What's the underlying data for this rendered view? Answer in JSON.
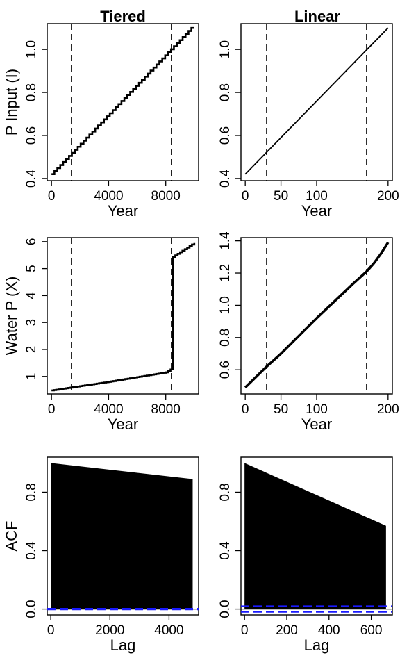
{
  "column_titles": [
    "Tiered",
    "Linear"
  ],
  "chart_data": [
    {
      "id": "p-input-tiered",
      "type": "line",
      "line_style": "step",
      "column": "Tiered",
      "xlabel": "Year",
      "ylabel": "P Input (I)",
      "xlim": [
        -300,
        10300
      ],
      "ylim": [
        0.39,
        1.12
      ],
      "xticks": [
        0,
        4000,
        8000
      ],
      "yticks": [
        0.4,
        0.6,
        0.8,
        1.0
      ],
      "ytick_labels": [
        "0.4",
        "0.6",
        "0.8",
        "1.0"
      ],
      "series": [
        {
          "x": [
            0,
            10000
          ],
          "y": [
            0.42,
            1.1
          ],
          "steps": 49
        }
      ],
      "vlines": [
        1400,
        8400
      ]
    },
    {
      "id": "p-input-linear",
      "type": "line",
      "column": "Linear",
      "xlabel": "Year",
      "ylabel": "",
      "xlim": [
        -6,
        206
      ],
      "ylim": [
        0.39,
        1.12
      ],
      "xticks": [
        0,
        50,
        100,
        200
      ],
      "yticks": [
        0.4,
        0.6,
        0.8,
        1.0
      ],
      "ytick_labels": [
        "0.4",
        "0.6",
        "0.8",
        "1.0"
      ],
      "series": [
        {
          "x": [
            0,
            200
          ],
          "y": [
            0.42,
            1.1
          ]
        }
      ],
      "vlines": [
        30,
        170
      ]
    },
    {
      "id": "water-p-tiered",
      "type": "line",
      "line_style": "step",
      "column": "Tiered",
      "xlabel": "Year",
      "ylabel": "Water P (X)",
      "xlim": [
        -300,
        10300
      ],
      "ylim": [
        0.35,
        6.15
      ],
      "xticks": [
        0,
        4000,
        8000
      ],
      "yticks": [
        1,
        2,
        3,
        4,
        5,
        6
      ],
      "ytick_labels": [
        "1",
        "2",
        "3",
        "4",
        "5",
        "6"
      ],
      "series": [
        {
          "x": [
            0,
            4000,
            8000,
            8400,
            8400,
            10000
          ],
          "y": [
            0.48,
            0.8,
            1.15,
            1.28,
            5.4,
            5.95
          ]
        }
      ],
      "vlines": [
        1400,
        8400
      ]
    },
    {
      "id": "water-p-linear",
      "type": "line",
      "column": "Linear",
      "xlabel": "Year",
      "ylabel": "",
      "xlim": [
        -6,
        206
      ],
      "ylim": [
        0.45,
        1.42
      ],
      "xticks": [
        0,
        50,
        100,
        200
      ],
      "yticks": [
        0.6,
        0.8,
        1.0,
        1.2,
        1.4
      ],
      "ytick_labels": [
        "0.6",
        "0.8",
        "1.0",
        "1.2",
        "1.4"
      ],
      "series": [
        {
          "x": [
            0,
            30,
            50,
            100,
            150,
            170,
            180,
            190,
            200
          ],
          "y": [
            0.49,
            0.62,
            0.7,
            0.92,
            1.13,
            1.21,
            1.26,
            1.32,
            1.39
          ]
        }
      ],
      "vlines": [
        30,
        170
      ]
    },
    {
      "id": "acf-tiered",
      "type": "area",
      "column": "Tiered",
      "xlabel": "Lag",
      "ylabel": "ACF",
      "xlim": [
        -120,
        5000
      ],
      "ylim": [
        -0.04,
        1.04
      ],
      "xticks": [
        0,
        2000,
        4000
      ],
      "yticks": [
        0.0,
        0.4,
        0.8
      ],
      "ytick_labels": [
        "0.0",
        "0.4",
        "0.8"
      ],
      "series": [
        {
          "x": [
            0,
            4800
          ],
          "y": [
            1.0,
            0.89
          ]
        }
      ],
      "confidence_band": 0.003
    },
    {
      "id": "acf-linear",
      "type": "area",
      "column": "Linear",
      "xlabel": "Lag",
      "ylabel": "",
      "xlim": [
        -17,
        700
      ],
      "ylim": [
        -0.04,
        1.04
      ],
      "xticks": [
        0,
        200,
        400,
        600
      ],
      "yticks": [
        0.0,
        0.4,
        0.8
      ],
      "ytick_labels": [
        "0.0",
        "0.4",
        "0.8"
      ],
      "series": [
        {
          "x": [
            0,
            670
          ],
          "y": [
            1.0,
            0.57
          ]
        }
      ],
      "confidence_band": 0.02
    }
  ]
}
